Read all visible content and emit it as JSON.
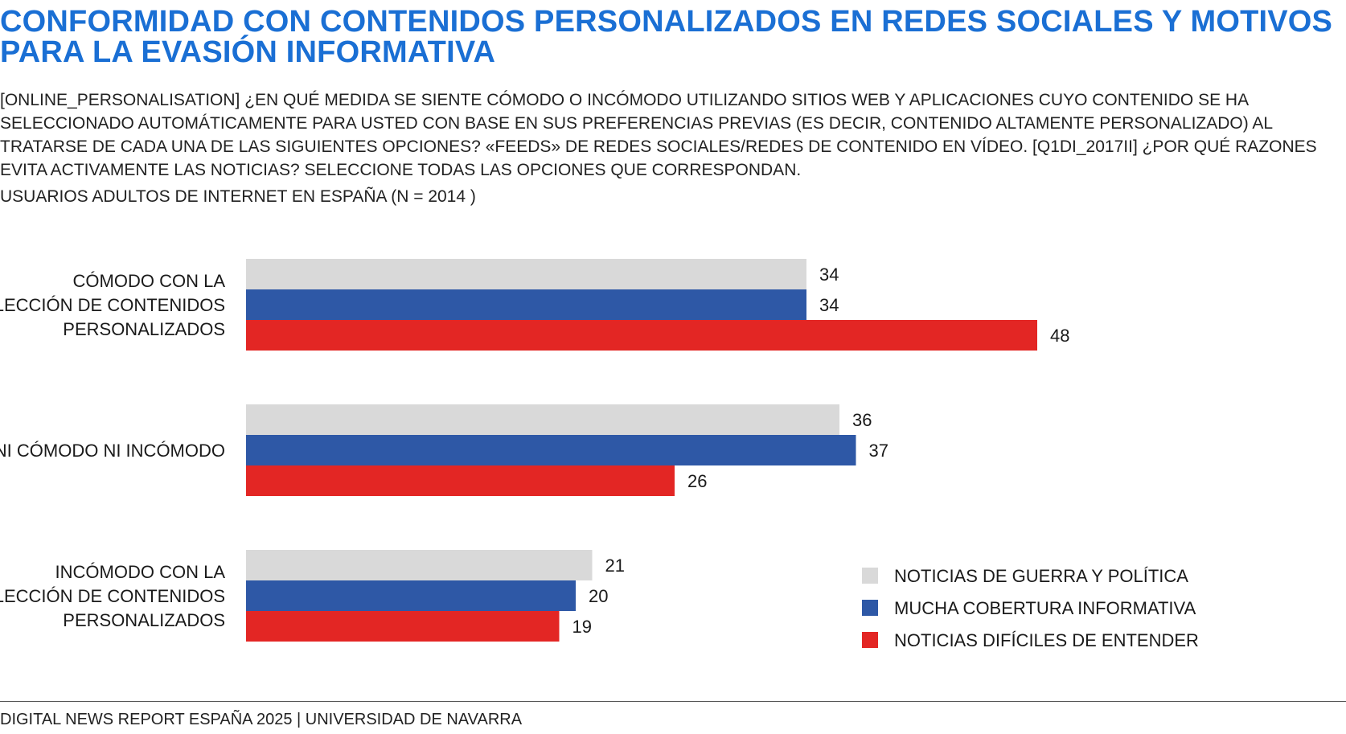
{
  "header": {
    "title": "CONFORMIDAD CON CONTENIDOS PERSONALIZADOS EN REDES SOCIALES Y MOTIVOS PARA LA EVASIÓN INFORMATIVA",
    "question": "[ONLINE_PERSONALISATION] ¿EN QUÉ MEDIDA SE SIENTE CÓMODO O INCÓMODO UTILIZANDO SITIOS WEB Y APLICACIONES CUYO CONTENIDO SE HA SELECCIONADO AUTOMÁTICAMENTE PARA USTED CON BASE EN SUS PREFERENCIAS PREVIAS (ES DECIR, CONTENIDO ALTAMENTE PERSONALIZADO) AL TRATARSE DE CADA UNA DE LAS SIGUIENTES OPCIONES? «FEEDS» DE REDES SOCIALES/REDES DE CONTENIDO EN VÍDEO. [Q1DI_2017II] ¿POR QUÉ RAZONES EVITA ACTIVAMENTE LAS NOTICIAS? SELECCIONE TODAS LAS OPCIONES QUE CORRESPONDAN.",
    "sample": "USUARIOS ADULTOS DE INTERNET EN ESPAÑA (N = 2014 )"
  },
  "footer": {
    "text": "DIGITAL NEWS REPORT ESPAÑA 2025 | UNIVERSIDAD DE NAVARRA"
  },
  "colors": {
    "title": "#1a6fd4",
    "series_1": "#d9d9d9",
    "series_2": "#2e58a6",
    "series_3": "#e32624"
  },
  "chart_data": {
    "type": "bar",
    "orientation": "horizontal",
    "categories": [
      [
        "CÓMODO CON LA",
        "SELECCIÓN DE CONTENIDOS",
        "PERSONALIZADOS"
      ],
      [
        "NI CÓMODO NI INCÓMODO"
      ],
      [
        "INCÓMODO CON LA",
        "SELECCIÓN DE CONTENIDOS",
        "PERSONALIZADOS"
      ]
    ],
    "series": [
      {
        "name": "NOTICIAS DE GUERRA Y POLÍTICA",
        "color": "#d9d9d9",
        "values": [
          34,
          36,
          21
        ]
      },
      {
        "name": "MUCHA COBERTURA INFORMATIVA",
        "color": "#2e58a6",
        "values": [
          34,
          37,
          20
        ]
      },
      {
        "name": "NOTICIAS DIFÍCILES DE ENTENDER",
        "color": "#e32624",
        "values": [
          48,
          26,
          19
        ]
      }
    ],
    "xlim": [
      0,
      48
    ],
    "grid": false,
    "legend": "bottom-right",
    "data_labels": true
  }
}
